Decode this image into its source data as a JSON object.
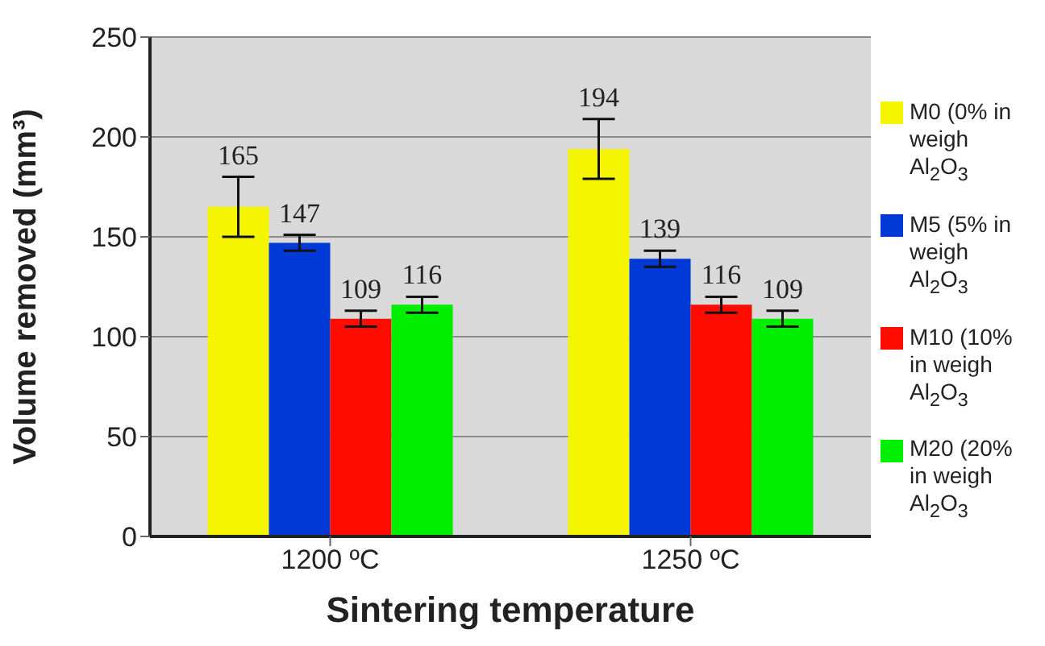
{
  "chart_data": {
    "type": "bar",
    "xlabel": "Sintering temperature",
    "ylabel": "Volume removed (mm³)",
    "categories": [
      "1200 ºC",
      "1250 ºC"
    ],
    "series": [
      {
        "name": "M0 (0% in weigh Al$_{2}$O$_{3}$",
        "color": "#f5f500",
        "values": [
          165,
          194
        ],
        "errors": [
          15,
          15
        ]
      },
      {
        "name": "M5 (5% in weigh Al$_{2}$O$_{3}$",
        "color": "#0039d6",
        "values": [
          147,
          139
        ],
        "errors": [
          4,
          4
        ]
      },
      {
        "name": "M10 (10% in weigh Al$_{2}$O$_{3}$",
        "color": "#fe0c00",
        "values": [
          109,
          116
        ],
        "errors": [
          4,
          4
        ]
      },
      {
        "name": "M20 (20% in weigh Al$_{2}$O$_{3}$",
        "color": "#00ee00",
        "values": [
          116,
          109
        ],
        "errors": [
          4,
          4
        ]
      }
    ],
    "ylim": [
      0,
      250
    ],
    "yticks": [
      0,
      50,
      100,
      150,
      200,
      250
    ],
    "grid": "y",
    "legend": "right",
    "data_labels": true
  }
}
